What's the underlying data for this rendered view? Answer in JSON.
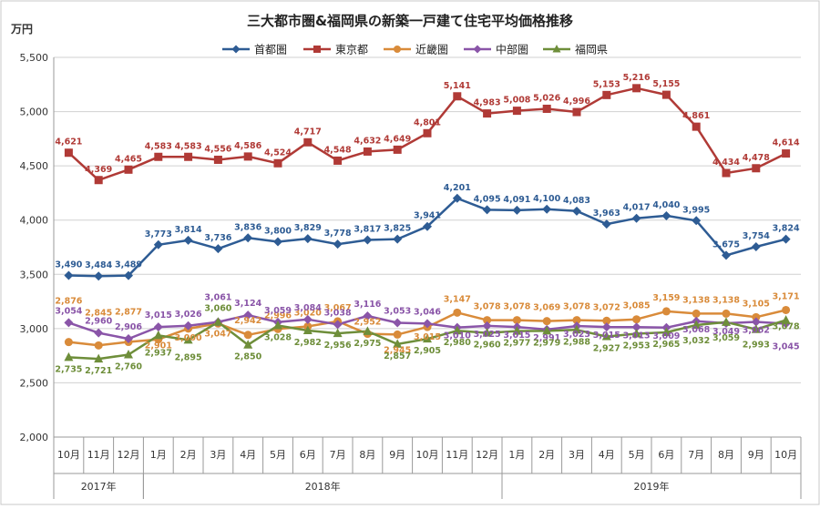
{
  "chart_data": {
    "type": "line",
    "title": "三大都市圏&福岡県の新築一戸建て住宅平均価格推移",
    "ylabel": "万円",
    "ylim": [
      2000,
      5500
    ],
    "yticks": [
      "2,000",
      "2,500",
      "3,000",
      "3,500",
      "4,000",
      "4,500",
      "5,000",
      "5,500"
    ],
    "grid": true,
    "legend": "top",
    "months": [
      "10月",
      "11月",
      "12月",
      "1月",
      "2月",
      "3月",
      "4月",
      "5月",
      "6月",
      "7月",
      "8月",
      "9月",
      "10月",
      "11月",
      "12月",
      "1月",
      "2月",
      "3月",
      "4月",
      "5月",
      "6月",
      "7月",
      "8月",
      "9月",
      "10月"
    ],
    "years": [
      {
        "label": "2017年",
        "start": 0,
        "end": 2
      },
      {
        "label": "2018年",
        "start": 3,
        "end": 14
      },
      {
        "label": "2019年",
        "start": 15,
        "end": 24
      }
    ],
    "series": [
      {
        "name": "首都圏",
        "color": "#2E5C94",
        "marker": "diamond",
        "values": [
          3490,
          3484,
          3489,
          3773,
          3814,
          3736,
          3836,
          3800,
          3829,
          3778,
          3817,
          3825,
          3941,
          4201,
          4095,
          4091,
          4100,
          4083,
          3963,
          4017,
          4040,
          3995,
          3675,
          3754,
          3824
        ],
        "labels": [
          "3,490",
          "3,484",
          "3,489",
          "3,773",
          "3,814",
          "3,736",
          "3,836",
          "3,800",
          "3,829",
          "3,778",
          "3,817",
          "3,825",
          "3,941",
          "4,201",
          "4,095",
          "4,091",
          "4,100",
          "4,083",
          "3,963",
          "4,017",
          "4,040",
          "3,995",
          "3,675",
          "3,754",
          "3,824"
        ]
      },
      {
        "name": "東京都",
        "color": "#B03A36",
        "marker": "square",
        "values": [
          4621,
          4369,
          4465,
          4583,
          4583,
          4556,
          4586,
          4524,
          4717,
          4548,
          4632,
          4649,
          4801,
          5141,
          4983,
          5008,
          5026,
          4996,
          5153,
          5216,
          5155,
          4861,
          4434,
          4478,
          4614
        ],
        "labels": [
          "4,621",
          "4,369",
          "4,465",
          "4,583",
          "4,583",
          "4,556",
          "4,586",
          "4,524",
          "4,717",
          "4,548",
          "4,632",
          "4,649",
          "4,801",
          "5,141",
          "4,983",
          "5,008",
          "5,026",
          "4,996",
          "5,153",
          "5,216",
          "5,155",
          "4,861",
          "4,434",
          "4,478",
          "4,614"
        ]
      },
      {
        "name": "近畿圏",
        "color": "#D98B3A",
        "marker": "circle",
        "values": [
          2876,
          2845,
          2877,
          2901,
          3000,
          3047,
          2942,
          2996,
          3020,
          3067,
          2952,
          2945,
          3015,
          3147,
          3078,
          3078,
          3069,
          3078,
          3072,
          3085,
          3159,
          3138,
          3138,
          3105,
          3171
        ],
        "labels": [
          "2,876",
          "2,845",
          "2,877",
          "2,901",
          "3,000",
          "3,047",
          "2,942",
          "2,996",
          "3,020",
          "3,067",
          "2,952",
          "2,945",
          "3,015",
          "3,147",
          "3,078",
          "3,078",
          "3,069",
          "3,078",
          "3,072",
          "3,085",
          "3,159",
          "3,138",
          "3,138",
          "3,105",
          "3,171"
        ]
      },
      {
        "name": "中部圏",
        "color": "#8A55A8",
        "marker": "diamond",
        "values": [
          3054,
          2960,
          2906,
          3015,
          3026,
          3061,
          3124,
          3059,
          3084,
          3038,
          3116,
          3053,
          3046,
          3010,
          3025,
          3015,
          2991,
          3023,
          3015,
          3013,
          3009,
          3068,
          3049,
          3062,
          3045
        ],
        "labels": [
          "3,054",
          "2,960",
          "2,906",
          "3,015",
          "3,026",
          "3,061",
          "3,124",
          "3,059",
          "3,084",
          "3,038",
          "3,116",
          "3,053",
          "3,046",
          "3,010",
          "3,025",
          "3,015",
          "2,991",
          "3,023",
          "3,015",
          "3,013",
          "3,009",
          "3,068",
          "3,049",
          "3,062",
          "3,045"
        ]
      },
      {
        "name": "福岡県",
        "color": "#6E8E3A",
        "marker": "triangle",
        "values": [
          2735,
          2721,
          2760,
          2937,
          2895,
          3060,
          2850,
          3028,
          2982,
          2956,
          2975,
          2857,
          2905,
          2980,
          2960,
          2977,
          2979,
          2988,
          2927,
          2953,
          2965,
          3032,
          3059,
          2993,
          3078
        ],
        "labels": [
          "2,735",
          "2,721",
          "2,760",
          "2,937",
          "2,895",
          "3,060",
          "2,850",
          "3,028",
          "2,982",
          "2,956",
          "2,975",
          "2,857",
          "2,905",
          "2,980",
          "2,960",
          "2,977",
          "2,979",
          "2,988",
          "2,927",
          "2,953",
          "2,965",
          "3,032",
          "3,059",
          "2,993",
          "3,078"
        ]
      }
    ]
  }
}
